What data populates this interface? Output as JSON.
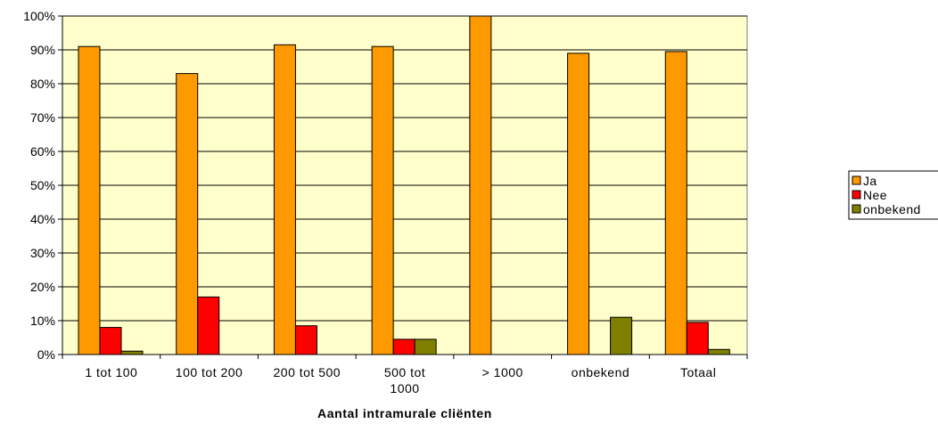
{
  "chart_data": {
    "type": "bar",
    "xlabel": "Aantal intramurale cliënten",
    "ylabel": "",
    "ylim": [
      0,
      100
    ],
    "y_tick_step": 10,
    "y_tick_format": "percent",
    "grid": true,
    "legend_position": "right",
    "categories": [
      [
        "1 tot 100"
      ],
      [
        "100 tot 200"
      ],
      [
        "200 tot 500"
      ],
      [
        "500 tot",
        "1000"
      ],
      [
        "> 1000"
      ],
      [
        "onbekend"
      ],
      [
        "Totaal"
      ]
    ],
    "series": [
      {
        "name": "Ja",
        "color": "#ff9900",
        "values": [
          91,
          83,
          91.5,
          91,
          100,
          89,
          89.5
        ]
      },
      {
        "name": "Nee",
        "color": "#ff0000",
        "values": [
          8,
          17,
          8.5,
          4.5,
          0,
          0,
          9.5
        ]
      },
      {
        "name": "onbekend",
        "color": "#808000",
        "values": [
          1,
          0,
          0,
          4.5,
          0,
          11,
          1.5
        ]
      }
    ],
    "plot_background": "#ffffcc"
  }
}
